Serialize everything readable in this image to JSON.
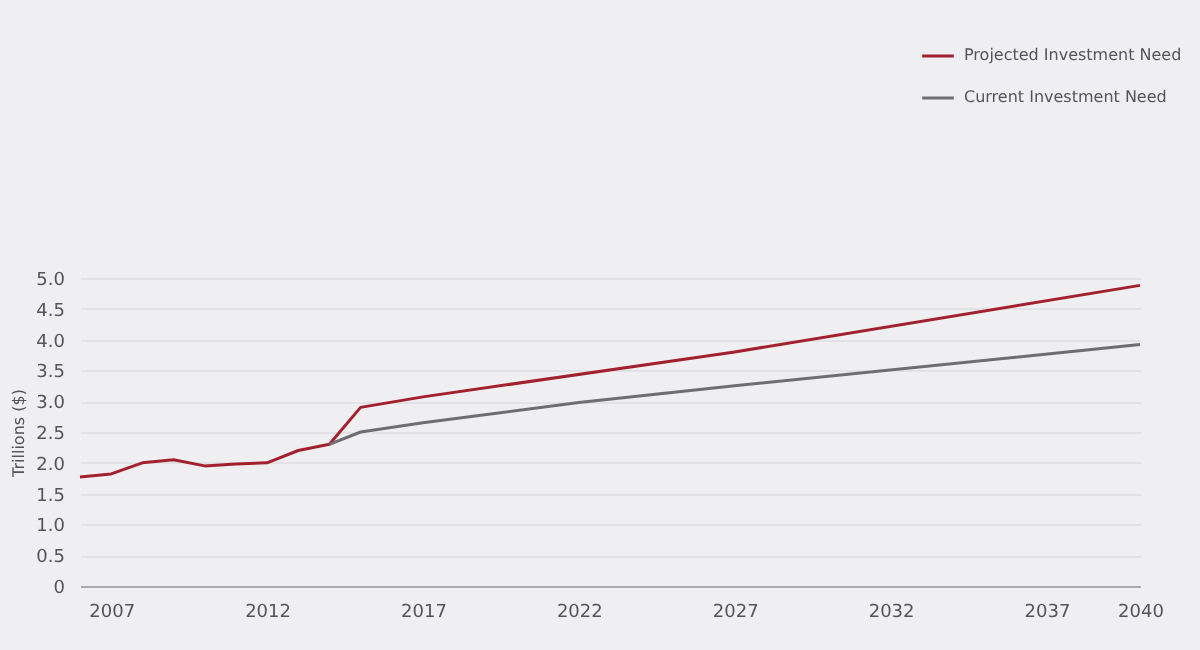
{
  "chart_data": {
    "type": "line",
    "ylabel": "Trillions ($)",
    "xlim": [
      2006,
      2040
    ],
    "xticks": [
      2007,
      2012,
      2017,
      2022,
      2027,
      2032,
      2037,
      2040
    ],
    "ylim": [
      0,
      5
    ],
    "yticks": [
      0,
      0.5,
      {
        "value": 1,
        "label": "1.0"
      },
      1.5,
      {
        "value": 2,
        "label": "2.0"
      },
      2.5,
      {
        "value": 3,
        "label": "3.0"
      },
      3.5,
      {
        "value": 4,
        "label": "4.0"
      },
      4.5,
      {
        "value": 5,
        "label": "5.0"
      }
    ],
    "grid": "y",
    "legend": "top right",
    "marker": "none",
    "line_style": "solid",
    "series": [
      {
        "name": "Projected Investment Need",
        "color": "#a3212e",
        "x": [
          2006,
          2007,
          2008,
          2009,
          2010,
          2011,
          2012,
          2013,
          2014,
          2015,
          2017,
          2027,
          2040
        ],
        "values": [
          1.77,
          1.82,
          2.0,
          2.05,
          1.95,
          1.98,
          2.0,
          2.2,
          2.3,
          2.9,
          3.07,
          3.8,
          4.88
        ]
      },
      {
        "name": "Current Investment Need",
        "color": "#6e6e70",
        "x": [
          2014,
          2015,
          2017,
          2022,
          2027,
          2040
        ],
        "values": [
          2.3,
          2.5,
          2.65,
          2.98,
          3.25,
          3.92
        ]
      }
    ]
  }
}
